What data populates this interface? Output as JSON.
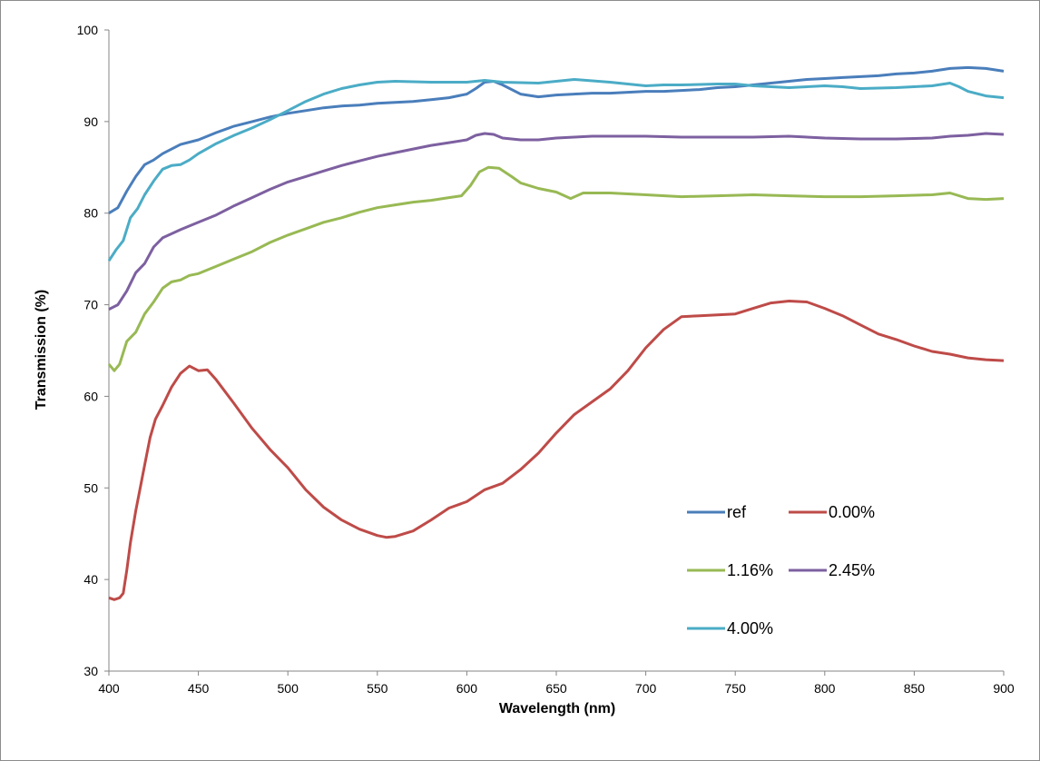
{
  "chart_data": {
    "type": "line",
    "title": "",
    "xlabel": "Wavelength (nm)",
    "ylabel": "Transmission (%)",
    "xlim": [
      400,
      900
    ],
    "ylim": [
      30,
      100
    ],
    "x_ticks": [
      "400",
      "450",
      "500",
      "550",
      "600",
      "650",
      "700",
      "750",
      "800",
      "850",
      "900"
    ],
    "y_ticks": [
      "30",
      "40",
      "50",
      "60",
      "70",
      "80",
      "90",
      "100"
    ],
    "grid": false,
    "legend_position": "lower-right inside plot",
    "series": [
      {
        "name": "ref",
        "color": "#4a7ebb",
        "points": [
          [
            400,
            80
          ],
          [
            405,
            80.6
          ],
          [
            410,
            82.4
          ],
          [
            415,
            84
          ],
          [
            420,
            85.3
          ],
          [
            425,
            85.8
          ],
          [
            430,
            86.5
          ],
          [
            440,
            87.5
          ],
          [
            450,
            88
          ],
          [
            460,
            88.8
          ],
          [
            470,
            89.5
          ],
          [
            480,
            90
          ],
          [
            490,
            90.5
          ],
          [
            500,
            90.9
          ],
          [
            510,
            91.2
          ],
          [
            520,
            91.5
          ],
          [
            530,
            91.7
          ],
          [
            540,
            91.8
          ],
          [
            550,
            92
          ],
          [
            560,
            92.1
          ],
          [
            570,
            92.2
          ],
          [
            580,
            92.4
          ],
          [
            590,
            92.6
          ],
          [
            600,
            93
          ],
          [
            605,
            93.6
          ],
          [
            610,
            94.3
          ],
          [
            615,
            94.4
          ],
          [
            620,
            94
          ],
          [
            630,
            93
          ],
          [
            640,
            92.7
          ],
          [
            650,
            92.9
          ],
          [
            660,
            93
          ],
          [
            670,
            93.1
          ],
          [
            680,
            93.1
          ],
          [
            690,
            93.2
          ],
          [
            700,
            93.3
          ],
          [
            710,
            93.3
          ],
          [
            720,
            93.4
          ],
          [
            730,
            93.5
          ],
          [
            740,
            93.7
          ],
          [
            750,
            93.8
          ],
          [
            760,
            94
          ],
          [
            770,
            94.2
          ],
          [
            780,
            94.4
          ],
          [
            790,
            94.6
          ],
          [
            800,
            94.7
          ],
          [
            810,
            94.8
          ],
          [
            820,
            94.9
          ],
          [
            830,
            95
          ],
          [
            840,
            95.2
          ],
          [
            850,
            95.3
          ],
          [
            860,
            95.5
          ],
          [
            870,
            95.8
          ],
          [
            880,
            95.9
          ],
          [
            890,
            95.8
          ],
          [
            900,
            95.5
          ]
        ]
      },
      {
        "name": "0.00%",
        "color": "#be4b48",
        "points": [
          [
            400,
            38
          ],
          [
            403,
            37.8
          ],
          [
            406,
            38
          ],
          [
            408,
            38.5
          ],
          [
            410,
            41
          ],
          [
            412,
            44
          ],
          [
            415,
            47.5
          ],
          [
            418,
            50.5
          ],
          [
            420,
            52.5
          ],
          [
            423,
            55.5
          ],
          [
            426,
            57.5
          ],
          [
            430,
            59
          ],
          [
            435,
            61
          ],
          [
            440,
            62.5
          ],
          [
            445,
            63.3
          ],
          [
            450,
            62.8
          ],
          [
            455,
            62.9
          ],
          [
            460,
            61.8
          ],
          [
            470,
            59.2
          ],
          [
            480,
            56.5
          ],
          [
            490,
            54.2
          ],
          [
            500,
            52.2
          ],
          [
            510,
            49.8
          ],
          [
            520,
            47.9
          ],
          [
            530,
            46.5
          ],
          [
            540,
            45.5
          ],
          [
            550,
            44.8
          ],
          [
            555,
            44.6
          ],
          [
            560,
            44.7
          ],
          [
            570,
            45.3
          ],
          [
            580,
            46.5
          ],
          [
            590,
            47.8
          ],
          [
            600,
            48.5
          ],
          [
            610,
            49.8
          ],
          [
            620,
            50.5
          ],
          [
            630,
            52
          ],
          [
            640,
            53.8
          ],
          [
            650,
            56
          ],
          [
            660,
            58
          ],
          [
            670,
            59.4
          ],
          [
            680,
            60.8
          ],
          [
            690,
            62.8
          ],
          [
            700,
            65.3
          ],
          [
            710,
            67.3
          ],
          [
            720,
            68.7
          ],
          [
            730,
            68.8
          ],
          [
            740,
            68.9
          ],
          [
            750,
            69
          ],
          [
            760,
            69.6
          ],
          [
            770,
            70.2
          ],
          [
            780,
            70.4
          ],
          [
            790,
            70.3
          ],
          [
            800,
            69.6
          ],
          [
            810,
            68.8
          ],
          [
            820,
            67.8
          ],
          [
            830,
            66.8
          ],
          [
            840,
            66.2
          ],
          [
            850,
            65.5
          ],
          [
            860,
            64.9
          ],
          [
            870,
            64.6
          ],
          [
            880,
            64.2
          ],
          [
            890,
            64
          ],
          [
            900,
            63.9
          ]
        ]
      },
      {
        "name": "1.16%",
        "color": "#98b954",
        "points": [
          [
            400,
            63.5
          ],
          [
            403,
            62.8
          ],
          [
            406,
            63.5
          ],
          [
            410,
            66
          ],
          [
            415,
            67
          ],
          [
            420,
            69
          ],
          [
            425,
            70.3
          ],
          [
            430,
            71.8
          ],
          [
            435,
            72.5
          ],
          [
            440,
            72.7
          ],
          [
            445,
            73.2
          ],
          [
            450,
            73.4
          ],
          [
            460,
            74.2
          ],
          [
            470,
            75
          ],
          [
            480,
            75.8
          ],
          [
            490,
            76.8
          ],
          [
            500,
            77.6
          ],
          [
            510,
            78.3
          ],
          [
            520,
            79
          ],
          [
            530,
            79.5
          ],
          [
            540,
            80.1
          ],
          [
            550,
            80.6
          ],
          [
            560,
            80.9
          ],
          [
            570,
            81.2
          ],
          [
            580,
            81.4
          ],
          [
            590,
            81.7
          ],
          [
            597,
            81.9
          ],
          [
            602,
            83
          ],
          [
            607,
            84.5
          ],
          [
            612,
            85
          ],
          [
            618,
            84.9
          ],
          [
            625,
            84
          ],
          [
            630,
            83.3
          ],
          [
            640,
            82.7
          ],
          [
            650,
            82.3
          ],
          [
            658,
            81.6
          ],
          [
            665,
            82.2
          ],
          [
            680,
            82.2
          ],
          [
            700,
            82
          ],
          [
            720,
            81.8
          ],
          [
            740,
            81.9
          ],
          [
            760,
            82
          ],
          [
            780,
            81.9
          ],
          [
            800,
            81.8
          ],
          [
            820,
            81.8
          ],
          [
            840,
            81.9
          ],
          [
            860,
            82
          ],
          [
            870,
            82.2
          ],
          [
            880,
            81.6
          ],
          [
            890,
            81.5
          ],
          [
            900,
            81.6
          ]
        ]
      },
      {
        "name": "2.45%",
        "color": "#7d60a0",
        "points": [
          [
            400,
            69.5
          ],
          [
            405,
            70
          ],
          [
            410,
            71.5
          ],
          [
            415,
            73.5
          ],
          [
            420,
            74.5
          ],
          [
            425,
            76.3
          ],
          [
            430,
            77.3
          ],
          [
            440,
            78.2
          ],
          [
            450,
            79
          ],
          [
            460,
            79.8
          ],
          [
            470,
            80.8
          ],
          [
            480,
            81.7
          ],
          [
            490,
            82.6
          ],
          [
            500,
            83.4
          ],
          [
            510,
            84
          ],
          [
            520,
            84.6
          ],
          [
            530,
            85.2
          ],
          [
            540,
            85.7
          ],
          [
            550,
            86.2
          ],
          [
            560,
            86.6
          ],
          [
            570,
            87
          ],
          [
            580,
            87.4
          ],
          [
            590,
            87.7
          ],
          [
            600,
            88
          ],
          [
            605,
            88.5
          ],
          [
            610,
            88.7
          ],
          [
            615,
            88.6
          ],
          [
            620,
            88.2
          ],
          [
            630,
            88
          ],
          [
            640,
            88
          ],
          [
            650,
            88.2
          ],
          [
            660,
            88.3
          ],
          [
            670,
            88.4
          ],
          [
            680,
            88.4
          ],
          [
            700,
            88.4
          ],
          [
            720,
            88.3
          ],
          [
            740,
            88.3
          ],
          [
            760,
            88.3
          ],
          [
            780,
            88.4
          ],
          [
            800,
            88.2
          ],
          [
            820,
            88.1
          ],
          [
            840,
            88.1
          ],
          [
            860,
            88.2
          ],
          [
            870,
            88.4
          ],
          [
            880,
            88.5
          ],
          [
            890,
            88.7
          ],
          [
            900,
            88.6
          ]
        ]
      },
      {
        "name": "4.00%",
        "color": "#4bacc6",
        "points": [
          [
            400,
            74.8
          ],
          [
            404,
            76
          ],
          [
            408,
            77
          ],
          [
            412,
            79.5
          ],
          [
            416,
            80.5
          ],
          [
            420,
            82
          ],
          [
            425,
            83.5
          ],
          [
            430,
            84.8
          ],
          [
            435,
            85.2
          ],
          [
            440,
            85.3
          ],
          [
            445,
            85.8
          ],
          [
            450,
            86.5
          ],
          [
            460,
            87.6
          ],
          [
            470,
            88.5
          ],
          [
            480,
            89.3
          ],
          [
            490,
            90.2
          ],
          [
            500,
            91.2
          ],
          [
            510,
            92.2
          ],
          [
            520,
            93
          ],
          [
            530,
            93.6
          ],
          [
            540,
            94
          ],
          [
            550,
            94.3
          ],
          [
            560,
            94.4
          ],
          [
            580,
            94.3
          ],
          [
            600,
            94.3
          ],
          [
            610,
            94.5
          ],
          [
            620,
            94.3
          ],
          [
            640,
            94.2
          ],
          [
            660,
            94.6
          ],
          [
            680,
            94.3
          ],
          [
            700,
            93.9
          ],
          [
            710,
            94
          ],
          [
            720,
            94
          ],
          [
            740,
            94.1
          ],
          [
            750,
            94.1
          ],
          [
            760,
            93.9
          ],
          [
            780,
            93.7
          ],
          [
            800,
            93.9
          ],
          [
            810,
            93.8
          ],
          [
            820,
            93.6
          ],
          [
            840,
            93.7
          ],
          [
            860,
            93.9
          ],
          [
            870,
            94.2
          ],
          [
            875,
            93.8
          ],
          [
            880,
            93.3
          ],
          [
            890,
            92.8
          ],
          [
            900,
            92.6
          ]
        ]
      }
    ]
  }
}
